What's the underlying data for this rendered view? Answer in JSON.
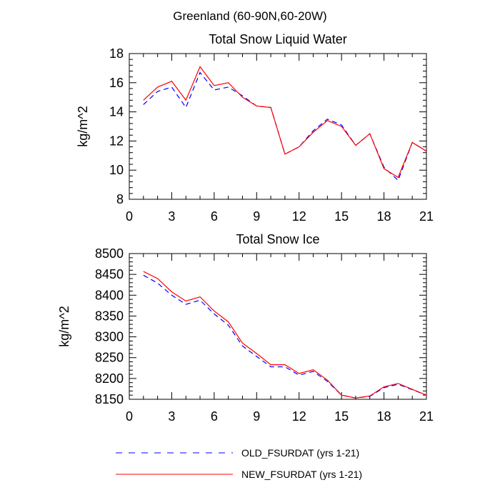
{
  "page_title": "Greenland (60-90N,60-20W)",
  "legend": [
    {
      "name": "OLD_FSURDAT (yrs 1-21)",
      "color": "#0000ff",
      "style": "dashed"
    },
    {
      "name": "NEW_FSURDAT (yrs 1-21)",
      "color": "#ff0000",
      "style": "solid"
    }
  ],
  "chart_data": [
    {
      "type": "line",
      "title": "Total Snow Liquid Water",
      "xlabel": "",
      "ylabel": "kg/m^2",
      "xlim": [
        0,
        21
      ],
      "ylim": [
        8,
        18
      ],
      "xticks": [
        0,
        3,
        6,
        9,
        12,
        15,
        18,
        21
      ],
      "yticks": [
        8,
        10,
        12,
        14,
        16,
        18
      ],
      "x": [
        1,
        2,
        3,
        4,
        5,
        6,
        7,
        8,
        9,
        10,
        11,
        12,
        13,
        14,
        15,
        16,
        17,
        18,
        19,
        20,
        21
      ],
      "series": [
        {
          "name": "OLD_FSURDAT (yrs 1-21)",
          "color": "#0000ff",
          "style": "dashed",
          "values": [
            14.5,
            15.4,
            15.7,
            14.3,
            16.7,
            15.5,
            15.7,
            15.1,
            14.4,
            14.3,
            11.1,
            11.6,
            12.7,
            13.5,
            13.1,
            11.7,
            12.5,
            10.2,
            9.3,
            11.9,
            11.3
          ]
        },
        {
          "name": "NEW_FSURDAT (yrs 1-21)",
          "color": "#ff0000",
          "style": "solid",
          "values": [
            14.8,
            15.7,
            16.1,
            14.8,
            17.1,
            15.8,
            16.0,
            15.0,
            14.4,
            14.3,
            11.1,
            11.6,
            12.6,
            13.4,
            13.0,
            11.7,
            12.5,
            10.1,
            9.5,
            11.9,
            11.3
          ]
        }
      ]
    },
    {
      "type": "line",
      "title": "Total Snow Ice",
      "xlabel": "",
      "ylabel": "kg/m^2",
      "xlim": [
        0,
        21
      ],
      "ylim": [
        8150,
        8500
      ],
      "xticks": [
        0,
        3,
        6,
        9,
        12,
        15,
        18,
        21
      ],
      "yticks": [
        8150,
        8200,
        8250,
        8300,
        8350,
        8400,
        8450,
        8500
      ],
      "x": [
        1,
        2,
        3,
        4,
        5,
        6,
        7,
        8,
        9,
        10,
        11,
        12,
        13,
        14,
        15,
        16,
        17,
        18,
        19,
        20,
        21
      ],
      "series": [
        {
          "name": "OLD_FSURDAT (yrs 1-21)",
          "color": "#0000ff",
          "style": "dashed",
          "values": [
            8448,
            8429,
            8400,
            8378,
            8388,
            8355,
            8328,
            8278,
            8253,
            8228,
            8228,
            8208,
            8217,
            8193,
            8160,
            8153,
            8157,
            8178,
            8186,
            8173,
            8160
          ]
        },
        {
          "name": "NEW_FSURDAT (yrs 1-21)",
          "color": "#ff0000",
          "style": "solid",
          "values": [
            8457,
            8440,
            8408,
            8386,
            8396,
            8362,
            8336,
            8285,
            8260,
            8233,
            8233,
            8212,
            8221,
            8196,
            8160,
            8153,
            8158,
            8180,
            8188,
            8174,
            8160
          ]
        }
      ]
    }
  ]
}
